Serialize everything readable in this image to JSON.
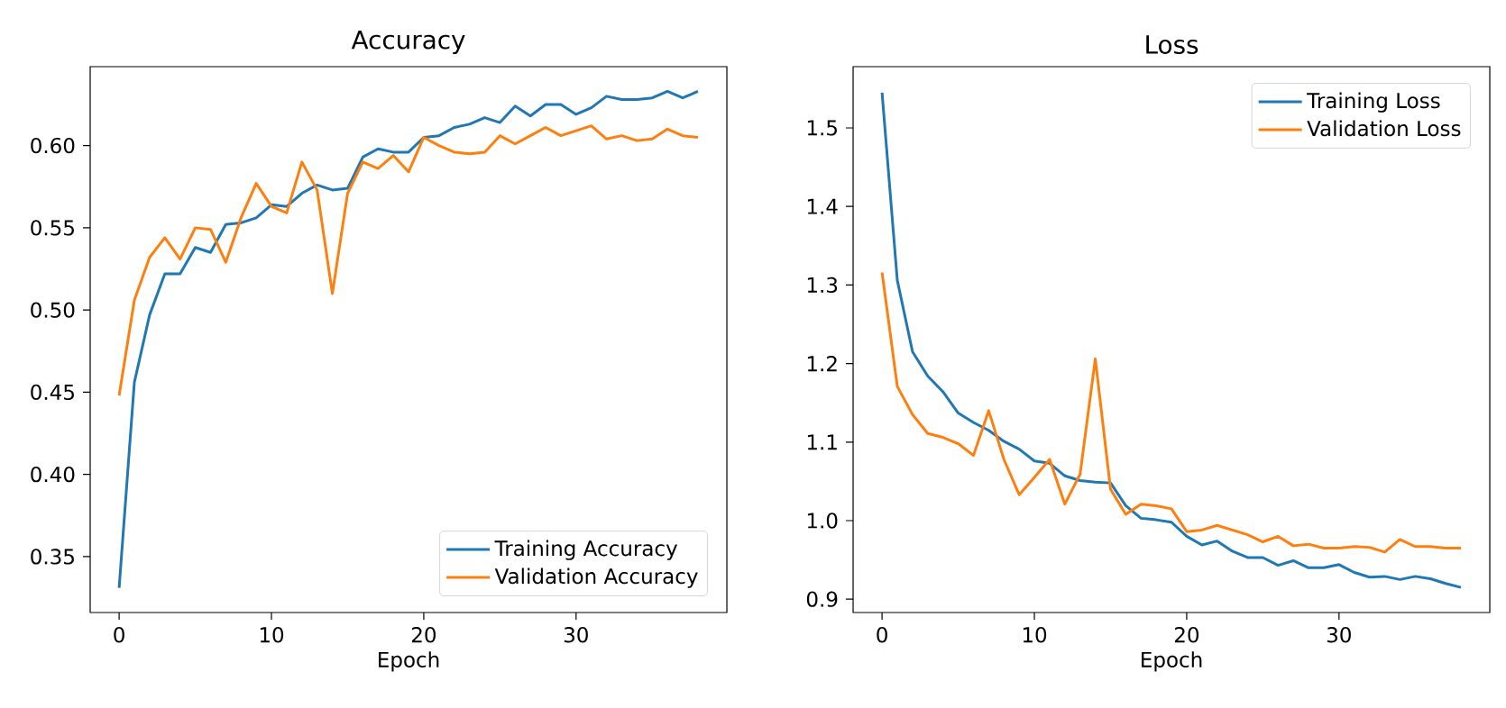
{
  "chart_data": [
    {
      "type": "line",
      "title": "Accuracy",
      "xlabel": "Epoch",
      "x": [
        0,
        1,
        2,
        3,
        4,
        5,
        6,
        7,
        8,
        9,
        10,
        11,
        12,
        13,
        14,
        15,
        16,
        17,
        18,
        19,
        20,
        21,
        22,
        23,
        24,
        25,
        26,
        27,
        28,
        29,
        30,
        31,
        32,
        33,
        34,
        35,
        36,
        37,
        38
      ],
      "series": [
        {
          "name": "Training Accuracy",
          "color": "#1f77b4",
          "values": [
            0.331,
            0.456,
            0.497,
            0.522,
            0.522,
            0.538,
            0.535,
            0.552,
            0.553,
            0.556,
            0.564,
            0.563,
            0.571,
            0.576,
            0.573,
            0.574,
            0.593,
            0.598,
            0.596,
            0.596,
            0.605,
            0.606,
            0.611,
            0.613,
            0.617,
            0.614,
            0.624,
            0.618,
            0.625,
            0.625,
            0.619,
            0.623,
            0.63,
            0.628,
            0.628,
            0.629,
            0.633,
            0.629,
            0.633
          ]
        },
        {
          "name": "Validation Accuracy",
          "color": "#ff7f0e",
          "values": [
            0.448,
            0.506,
            0.532,
            0.544,
            0.531,
            0.55,
            0.549,
            0.529,
            0.556,
            0.577,
            0.563,
            0.559,
            0.59,
            0.573,
            0.51,
            0.571,
            0.59,
            0.586,
            0.594,
            0.584,
            0.605,
            0.6,
            0.596,
            0.595,
            0.596,
            0.606,
            0.601,
            0.606,
            0.611,
            0.606,
            0.609,
            0.612,
            0.604,
            0.606,
            0.603,
            0.604,
            0.61,
            0.606,
            0.605
          ]
        }
      ],
      "xlim": [
        -1.9,
        39.9
      ],
      "ylim": [
        0.316,
        0.648
      ],
      "xticks": [
        0,
        10,
        20,
        30
      ],
      "yticks": [
        {
          "value": 0.35,
          "label": "0.35"
        },
        {
          "value": 0.4,
          "label": "0.40"
        },
        {
          "value": 0.45,
          "label": "0.45"
        },
        {
          "value": 0.5,
          "label": "0.50"
        },
        {
          "value": 0.55,
          "label": "0.55"
        },
        {
          "value": 0.6,
          "label": "0.60"
        }
      ],
      "legend": "bottom right"
    },
    {
      "type": "line",
      "title": "Loss",
      "xlabel": "Epoch",
      "x": [
        0,
        1,
        2,
        3,
        4,
        5,
        6,
        7,
        8,
        9,
        10,
        11,
        12,
        13,
        14,
        15,
        16,
        17,
        18,
        19,
        20,
        21,
        22,
        23,
        24,
        25,
        26,
        27,
        28,
        29,
        30,
        31,
        32,
        33,
        34,
        35,
        36,
        37,
        38
      ],
      "series": [
        {
          "name": "Training Loss",
          "color": "#1f77b4",
          "values": [
            1.545,
            1.306,
            1.215,
            1.184,
            1.164,
            1.137,
            1.125,
            1.115,
            1.101,
            1.091,
            1.076,
            1.073,
            1.057,
            1.051,
            1.049,
            1.048,
            1.019,
            1.003,
            1.001,
            0.998,
            0.98,
            0.969,
            0.974,
            0.961,
            0.953,
            0.953,
            0.943,
            0.949,
            0.94,
            0.94,
            0.944,
            0.934,
            0.928,
            0.929,
            0.925,
            0.929,
            0.926,
            0.92,
            0.915
          ]
        },
        {
          "name": "Validation Loss",
          "color": "#ff7f0e",
          "values": [
            1.316,
            1.171,
            1.135,
            1.111,
            1.106,
            1.098,
            1.083,
            1.14,
            1.078,
            1.033,
            1.055,
            1.078,
            1.021,
            1.059,
            1.206,
            1.04,
            1.008,
            1.021,
            1.019,
            1.015,
            0.986,
            0.988,
            0.994,
            0.988,
            0.982,
            0.973,
            0.98,
            0.968,
            0.97,
            0.965,
            0.965,
            0.967,
            0.966,
            0.96,
            0.976,
            0.967,
            0.967,
            0.965,
            0.965
          ]
        }
      ],
      "xlim": [
        -1.9,
        39.9
      ],
      "ylim": [
        0.883,
        1.578
      ],
      "xticks": [
        0,
        10,
        20,
        30
      ],
      "yticks": [
        {
          "value": 0.9,
          "label": "0.9"
        },
        {
          "value": 1.0,
          "label": "1.0"
        },
        {
          "value": 1.1,
          "label": "1.1"
        },
        {
          "value": 1.2,
          "label": "1.2"
        },
        {
          "value": 1.3,
          "label": "1.3"
        },
        {
          "value": 1.4,
          "label": "1.4"
        },
        {
          "value": 1.5,
          "label": "1.5"
        }
      ],
      "legend": "top right"
    }
  ]
}
